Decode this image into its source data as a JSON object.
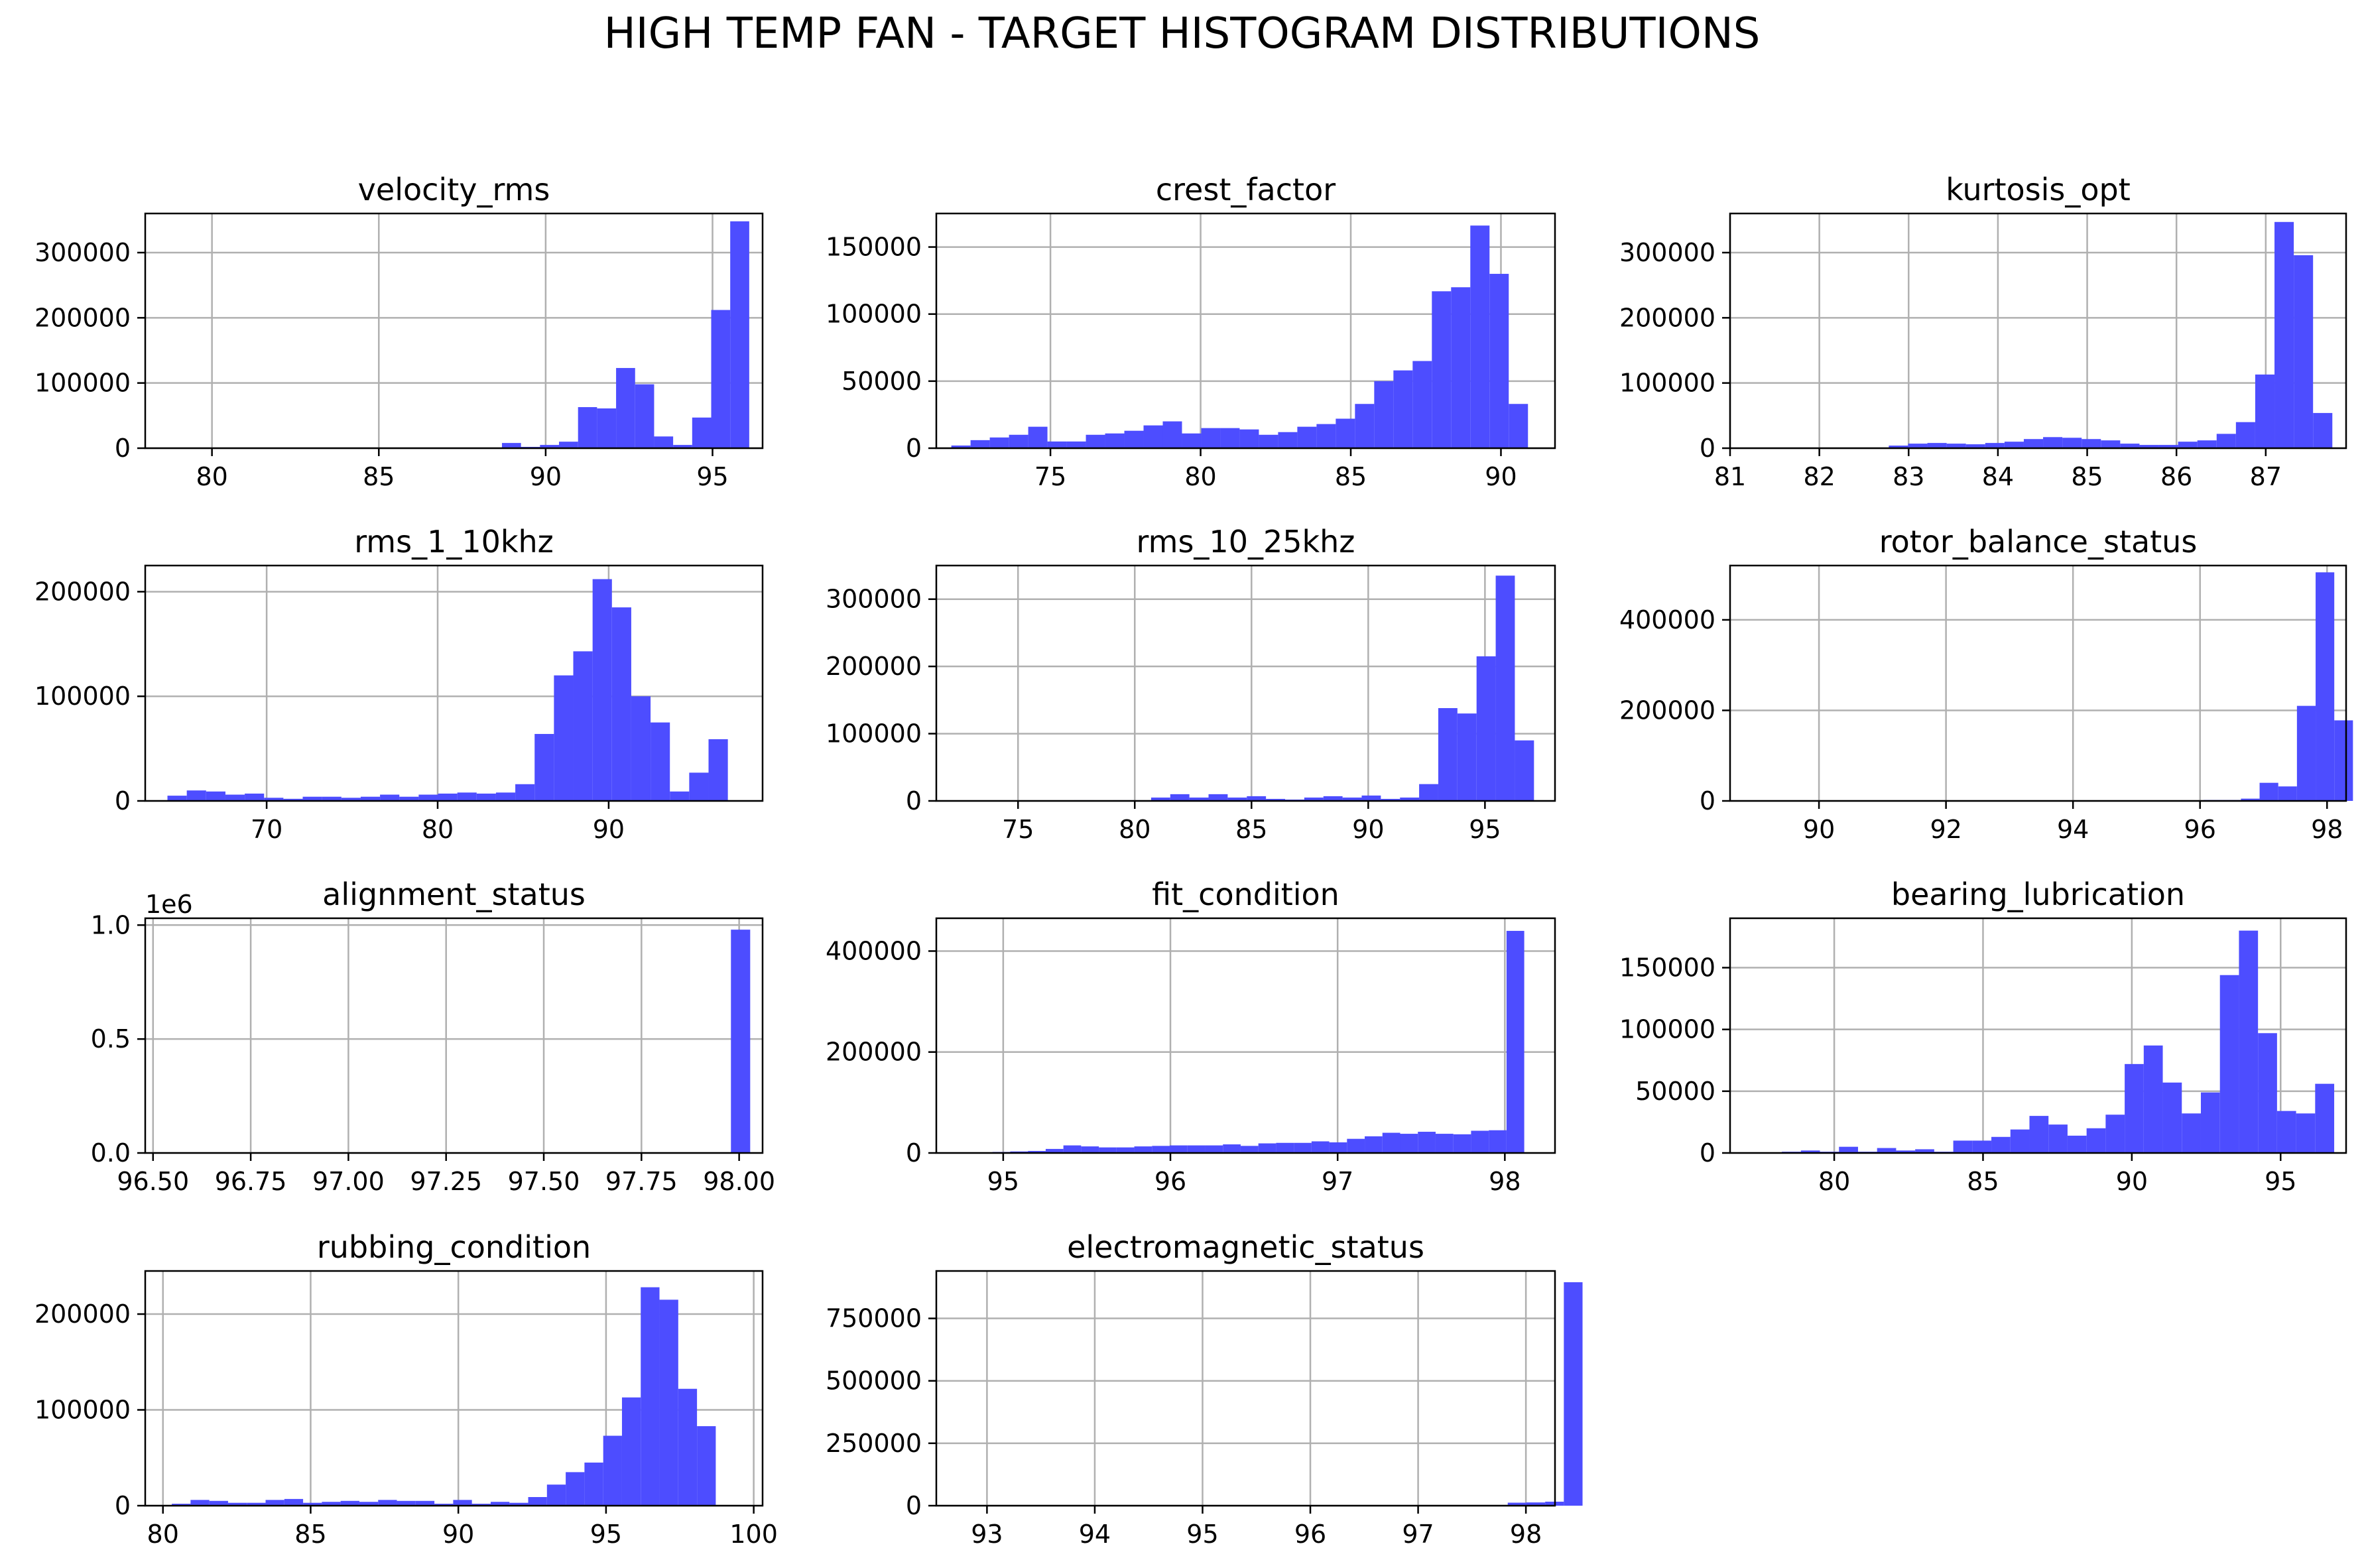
{
  "title": "HIGH TEMP FAN - TARGET HISTOGRAM DISTRIBUTIONS",
  "colors": {
    "bar": "#4d4dff",
    "grid": "#b0b0b0",
    "axis": "#000000"
  },
  "chart_data": [
    {
      "type": "bar",
      "title": "velocity_rms",
      "xlim": [
        78.0,
        96.5
      ],
      "ylim": [
        0,
        360000
      ],
      "xticks": [
        80,
        85,
        90,
        95
      ],
      "yticks": [
        0,
        100000,
        200000,
        300000
      ],
      "bins": {
        "start": 79.0,
        "width": 0.57
      },
      "values": [
        0,
        0,
        0,
        0,
        0,
        0,
        0,
        0,
        0,
        0,
        0,
        0,
        0,
        0,
        0,
        500,
        1000,
        8000,
        2000,
        5000,
        10000,
        63000,
        61000,
        123000,
        98000,
        18000,
        5000,
        47000,
        212000,
        348000
      ]
    },
    {
      "type": "bar",
      "title": "crest_factor",
      "xlim": [
        71.2,
        91.8
      ],
      "ylim": [
        0,
        175000
      ],
      "xticks": [
        75,
        80,
        85,
        90
      ],
      "yticks": [
        0,
        50000,
        100000,
        150000
      ],
      "bins": {
        "start": 71.7,
        "width": 0.64
      },
      "values": [
        2000,
        6000,
        8000,
        10000,
        16000,
        5000,
        5000,
        10000,
        11000,
        13000,
        17000,
        20000,
        11000,
        15000,
        15000,
        14000,
        10000,
        12000,
        16000,
        18000,
        22000,
        33000,
        50000,
        58000,
        65000,
        117000,
        120000,
        166000,
        130000,
        33000
      ]
    },
    {
      "type": "bar",
      "title": "kurtosis_opt",
      "xlim": [
        81.0,
        87.9
      ],
      "ylim": [
        0,
        360000
      ],
      "xticks": [
        81,
        82,
        83,
        84,
        85,
        86,
        87
      ],
      "yticks": [
        0,
        100000,
        200000,
        300000
      ],
      "bins": {
        "start": 81.05,
        "width": 0.216
      },
      "values": [
        1000,
        1000,
        1000,
        1000,
        1000,
        1000,
        1000,
        1000,
        4000,
        7000,
        8000,
        7000,
        6000,
        8000,
        10000,
        14000,
        17000,
        16000,
        14000,
        12000,
        7000,
        5000,
        5000,
        10000,
        12000,
        22000,
        40000,
        113000,
        347000,
        296000,
        54000
      ]
    },
    {
      "type": "bar",
      "title": "rms_1_10khz",
      "xlim": [
        62.9,
        99.0
      ],
      "ylim": [
        0,
        225000
      ],
      "xticks": [
        70,
        80,
        90
      ],
      "yticks": [
        0,
        100000,
        200000
      ],
      "bins": {
        "start": 64.2,
        "width": 1.13
      },
      "values": [
        5000,
        10000,
        9000,
        6000,
        7000,
        3000,
        2000,
        4000,
        4000,
        3000,
        4000,
        6000,
        4000,
        6000,
        7000,
        8000,
        7000,
        8000,
        16000,
        64000,
        120000,
        143000,
        212000,
        185000,
        100000,
        75000,
        9000,
        27000,
        59000
      ]
    },
    {
      "type": "bar",
      "title": "rms_10_25khz",
      "xlim": [
        71.5,
        98.0
      ],
      "ylim": [
        0,
        350000
      ],
      "xticks": [
        75,
        80,
        85,
        90,
        95
      ],
      "yticks": [
        0,
        100000,
        200000,
        300000
      ],
      "bins": {
        "start": 72.5,
        "width": 0.82
      },
      "values": [
        0,
        0,
        0,
        500,
        500,
        500,
        1000,
        500,
        1000,
        1000,
        5000,
        10000,
        5000,
        10000,
        5000,
        7000,
        3000,
        2000,
        5000,
        7000,
        5000,
        8000,
        3000,
        5000,
        25000,
        138000,
        130000,
        215000,
        335000,
        90000
      ]
    },
    {
      "type": "bar",
      "title": "rotor_balance_status",
      "xlim": [
        88.6,
        98.3
      ],
      "ylim": [
        0,
        520000
      ],
      "xticks": [
        90,
        92,
        94,
        96,
        98
      ],
      "yticks": [
        0,
        200000,
        400000
      ],
      "bins": {
        "start": 89.0,
        "width": 0.294
      },
      "values": [
        0,
        0,
        0,
        0,
        0,
        0,
        0,
        0,
        0,
        0,
        0,
        0,
        0,
        0,
        0,
        0,
        0,
        500,
        500,
        500,
        500,
        1000,
        500,
        1000,
        2000,
        2000,
        5000,
        40000,
        32000,
        210000,
        505000,
        178000
      ]
    },
    {
      "type": "bar",
      "title": "alignment_status",
      "xlim": [
        96.48,
        98.06
      ],
      "ylim": [
        0,
        1030000
      ],
      "xticks": [
        96.5,
        96.75,
        97.0,
        97.25,
        97.5,
        97.75,
        98.0
      ],
      "xtick_labels": [
        "96.50",
        "96.75",
        "97.00",
        "97.25",
        "97.50",
        "97.75",
        "98.00"
      ],
      "yticks": [
        0,
        500000,
        1000000
      ],
      "ytick_labels": [
        "0.0",
        "0.5",
        "1.0"
      ],
      "offset_text": "1e6",
      "bins": {
        "start": 96.5,
        "width": 0.0493
      },
      "values": [
        0,
        0,
        0,
        0,
        0,
        0,
        0,
        0,
        0,
        0,
        0,
        0,
        0,
        0,
        0,
        0,
        0,
        0,
        0,
        0,
        0,
        0,
        0,
        0,
        0,
        0,
        0,
        0,
        0,
        1000,
        980000
      ]
    },
    {
      "type": "bar",
      "title": "fit_condition",
      "xlim": [
        94.6,
        98.3
      ],
      "ylim": [
        0,
        465000
      ],
      "xticks": [
        95,
        96,
        97,
        98
      ],
      "yticks": [
        0,
        200000,
        400000
      ],
      "bins": {
        "start": 94.83,
        "width": 0.106
      },
      "values": [
        1000,
        2000,
        3000,
        4000,
        8000,
        15000,
        13000,
        11000,
        11000,
        13000,
        14000,
        15000,
        15000,
        15000,
        17000,
        14000,
        19000,
        20000,
        20000,
        23000,
        21000,
        28000,
        33000,
        40000,
        38000,
        42000,
        38000,
        37000,
        44000,
        45000,
        440000
      ]
    },
    {
      "type": "bar",
      "title": "bearing_lubrication",
      "xlim": [
        76.5,
        97.2
      ],
      "ylim": [
        0,
        190000
      ],
      "xticks": [
        80,
        85,
        90,
        95
      ],
      "yticks": [
        0,
        50000,
        100000,
        150000
      ],
      "bins": {
        "start": 77.6,
        "width": 0.64
      },
      "values": [
        0,
        1000,
        2000,
        1000,
        5000,
        1000,
        4000,
        2000,
        3000,
        1000,
        10000,
        10000,
        13000,
        19000,
        30000,
        23000,
        14000,
        20000,
        31000,
        72000,
        87000,
        57000,
        32000,
        49000,
        144000,
        180000,
        97000,
        34000,
        32000,
        56000
      ]
    },
    {
      "type": "bar",
      "title": "rubbing_condition",
      "xlim": [
        79.4,
        100.3
      ],
      "ylim": [
        0,
        245000
      ],
      "xticks": [
        80,
        85,
        90,
        95,
        100
      ],
      "yticks": [
        0,
        100000,
        200000
      ],
      "bins": {
        "start": 80.3,
        "width": 0.635
      },
      "values": [
        2000,
        6000,
        5000,
        3000,
        3000,
        6000,
        7000,
        3000,
        4000,
        5000,
        4000,
        6000,
        5000,
        5000,
        2000,
        6000,
        2000,
        4000,
        3000,
        9000,
        22000,
        35000,
        45000,
        73000,
        113000,
        228000,
        215000,
        122000,
        83000,
        0
      ]
    },
    {
      "type": "bar",
      "title": "electromagnetic_status",
      "xlim": [
        92.53,
        98.27
      ],
      "ylim": [
        0,
        940000
      ],
      "xticks": [
        93,
        94,
        95,
        96,
        97,
        98
      ],
      "yticks": [
        0,
        250000,
        500000,
        750000
      ],
      "bins": {
        "start": 92.8,
        "width": 0.1735
      },
      "values": [
        0,
        0,
        0,
        0,
        0,
        0,
        0,
        0,
        0,
        0,
        1000,
        2000,
        1000,
        1000,
        0,
        1000,
        1000,
        1000,
        500,
        2000,
        1000,
        2000,
        500,
        500,
        500,
        500,
        500,
        1000,
        1000,
        12000,
        13000,
        16000,
        895000
      ]
    }
  ]
}
